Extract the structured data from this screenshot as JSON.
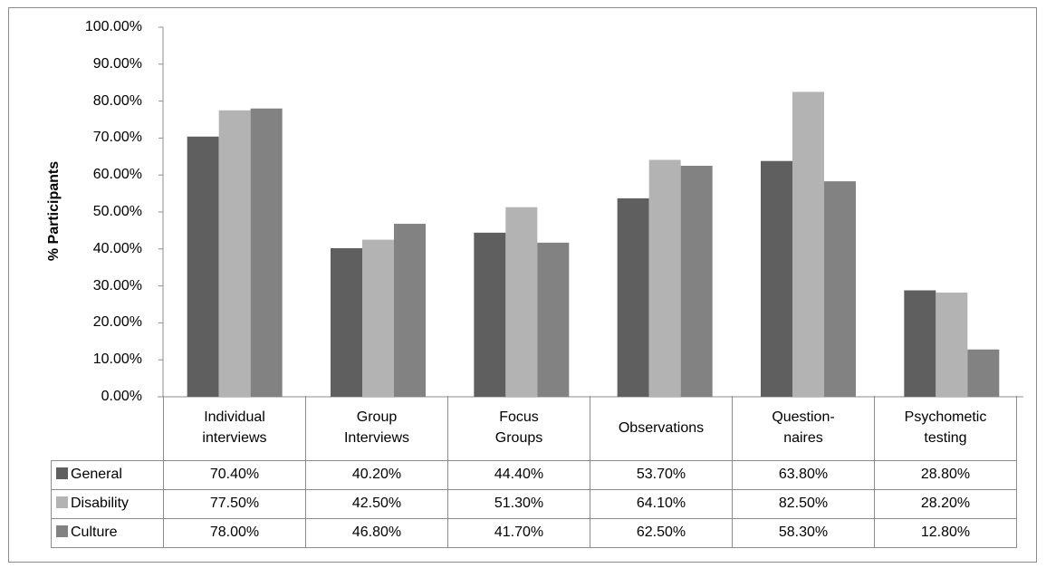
{
  "chart_data": {
    "type": "bar",
    "title": "",
    "ylabel": "% Participants",
    "xlabel": "",
    "ylim": [
      0,
      100
    ],
    "yticks": [
      "0.00%",
      "10.00%",
      "20.00%",
      "30.00%",
      "40.00%",
      "50.00%",
      "60.00%",
      "70.00%",
      "80.00%",
      "90.00%",
      "100.00%"
    ],
    "categories": [
      [
        "Individual",
        "interviews"
      ],
      [
        "Group",
        "Interviews"
      ],
      [
        "Focus",
        "Groups"
      ],
      [
        "Observations"
      ],
      [
        "Question-",
        "naires"
      ],
      [
        "Psychometic",
        "testing"
      ]
    ],
    "series": [
      {
        "name": "General",
        "color": "#5f5f5f",
        "values": [
          70.4,
          40.2,
          44.4,
          53.7,
          63.8,
          28.8
        ],
        "labels": [
          "70.40%",
          "40.20%",
          "44.40%",
          "53.70%",
          "63.80%",
          "28.80%"
        ]
      },
      {
        "name": "Disability",
        "color": "#b3b3b3",
        "values": [
          77.5,
          42.5,
          51.3,
          64.1,
          82.5,
          28.2
        ],
        "labels": [
          "77.50%",
          "42.50%",
          "51.30%",
          "64.10%",
          "82.50%",
          "28.20%"
        ]
      },
      {
        "name": "Culture",
        "color": "#828282",
        "values": [
          78.0,
          46.8,
          41.7,
          62.5,
          58.3,
          12.8
        ],
        "labels": [
          "78.00%",
          "46.80%",
          "41.70%",
          "62.50%",
          "58.30%",
          "12.80%"
        ]
      }
    ],
    "grid": false,
    "legend": "data-table"
  }
}
